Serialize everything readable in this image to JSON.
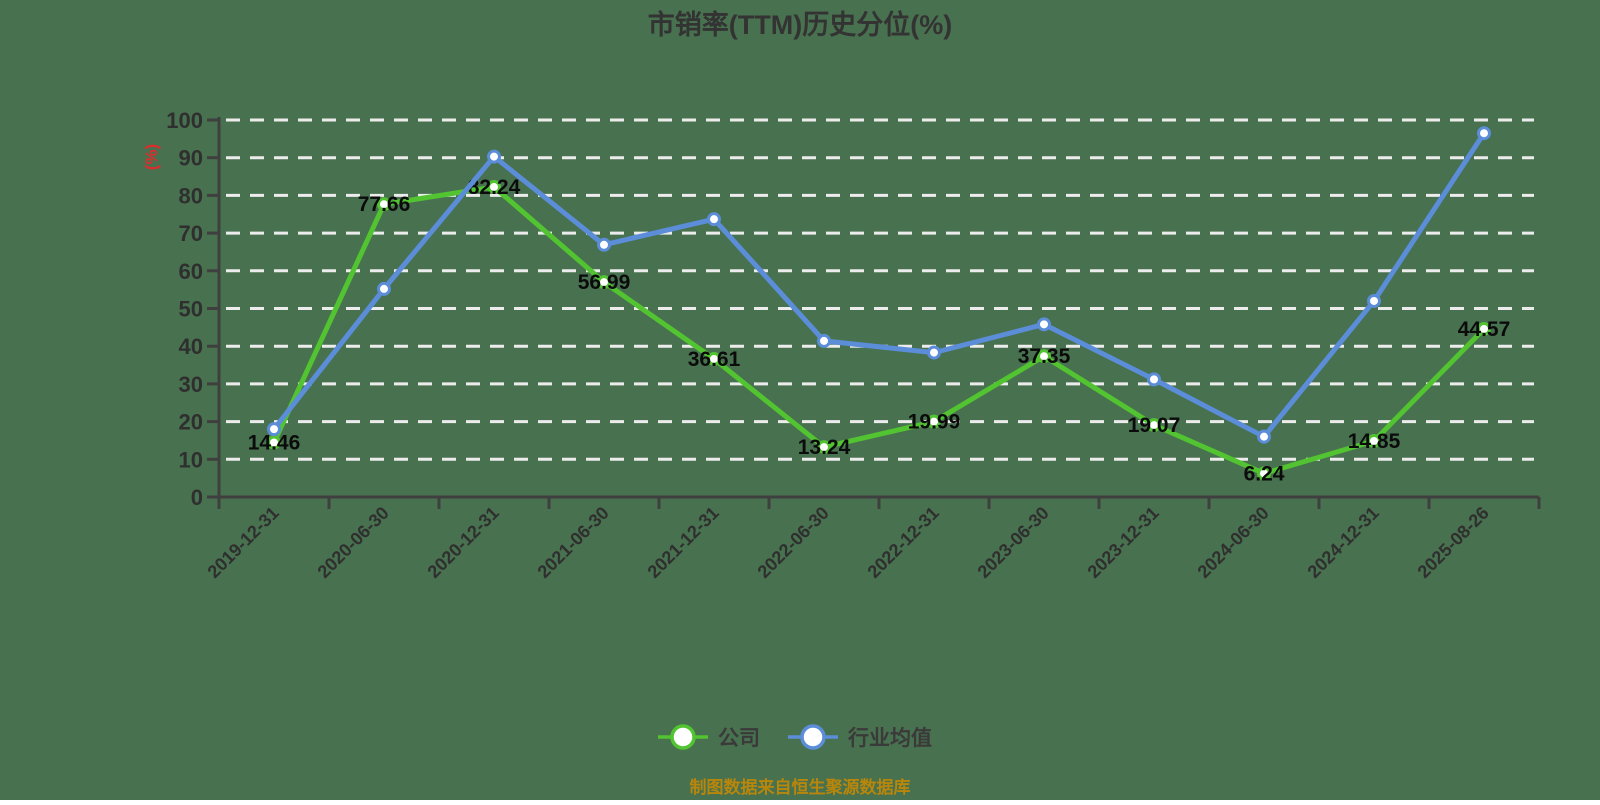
{
  "background_color": "#48714F",
  "title": {
    "text": "市销率(TTM)历史分位(%)",
    "color": "#333333"
  },
  "y_axis_unit": {
    "text": "(%)",
    "color": "#DD2C2C"
  },
  "footer": {
    "text": "制图数据来自恒生聚源数据库",
    "color": "#B8860B"
  },
  "legend": {
    "items": [
      {
        "label": "公司",
        "color": "#52C331"
      },
      {
        "label": "行业均值",
        "color": "#5B8DD8"
      }
    ]
  },
  "axis": {
    "line_color": "#3F3F3F",
    "tick_label_color": "#2F2F2F",
    "gridline_color": "#ECECEC",
    "value_label_color": "#0B0B0B",
    "legend_label_color": "#3A3A3A"
  },
  "chart_data": {
    "type": "line",
    "title": "市销率(TTM)历史分位(%)",
    "xlabel": "",
    "ylabel": "(%)",
    "ylim": [
      0,
      100
    ],
    "y_ticks": [
      0,
      10,
      20,
      30,
      40,
      50,
      60,
      70,
      80,
      90,
      100
    ],
    "grid": "horizontal-dashed-white",
    "legend_position": "bottom-center",
    "x": [
      "2019-12-31",
      "2020-06-30",
      "2020-12-31",
      "2021-06-30",
      "2021-12-31",
      "2022-06-30",
      "2022-12-31",
      "2023-06-30",
      "2023-12-31",
      "2024-06-30",
      "2024-12-31",
      "2025-08-26"
    ],
    "series": [
      {
        "name": "公司",
        "color": "#52C331",
        "marker": "white-circle",
        "labeled": true,
        "values": [
          14.46,
          77.66,
          82.24,
          56.99,
          36.61,
          13.24,
          19.99,
          37.35,
          19.07,
          6.24,
          14.85,
          44.57
        ]
      },
      {
        "name": "行业均值",
        "color": "#5B8DD8",
        "marker": "white-circle",
        "labeled": false,
        "values": [
          18.0,
          55.2,
          90.3,
          66.9,
          73.7,
          41.4,
          38.3,
          45.8,
          31.2,
          16.0,
          52.0,
          96.5
        ]
      }
    ]
  }
}
